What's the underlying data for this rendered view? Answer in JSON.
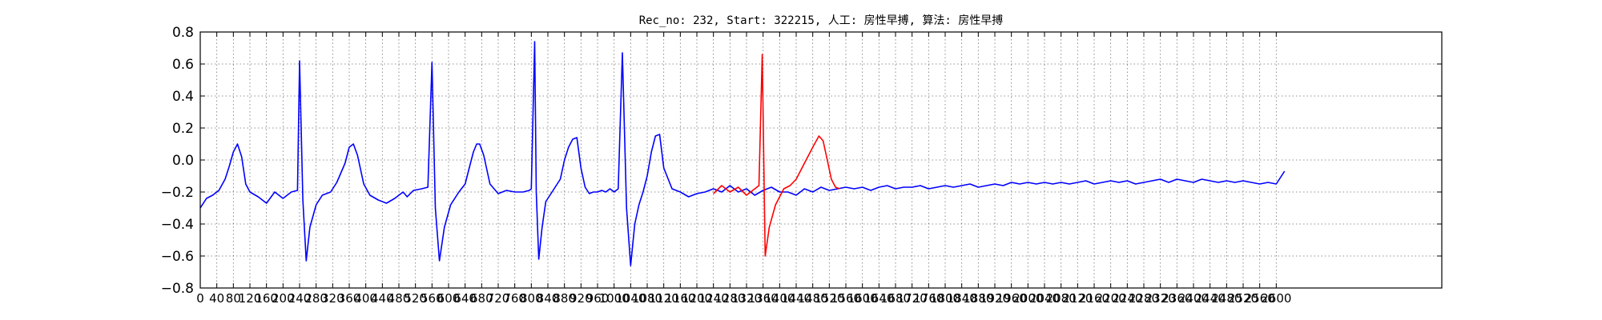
{
  "chart_data": {
    "type": "line",
    "title": "Rec_no: 232, Start: 322215, 人工: 房性早搏, 算法: 房性早搏",
    "xlabel": "",
    "ylabel": "",
    "xlim": [
      0,
      3000
    ],
    "ylim": [
      -0.8,
      0.8
    ],
    "grid": true,
    "y_ticks": [
      -0.8,
      -0.6,
      -0.4,
      -0.2,
      0.0,
      0.2,
      0.4,
      0.6,
      0.8
    ],
    "y_tick_labels": [
      "−0.8",
      "−0.6",
      "−0.4",
      "−0.2",
      "0.0",
      "0.2",
      "0.4",
      "0.6",
      "0.8"
    ],
    "x_ticks": [
      0,
      40,
      80,
      120,
      160,
      200,
      240,
      280,
      320,
      360,
      400,
      440,
      480,
      520,
      560,
      600,
      640,
      680,
      720,
      760,
      800,
      840,
      880,
      920,
      960,
      1000,
      1040,
      1080,
      1120,
      1160,
      1200,
      1240,
      1280,
      1320,
      1360,
      1400,
      1440,
      1480,
      1520,
      1560,
      1600,
      1640,
      1680,
      1720,
      1760,
      1800,
      1840,
      1880,
      1920,
      1960,
      2000,
      2040,
      2080,
      2120,
      2160,
      2200,
      2240,
      2280,
      2320,
      2360,
      2400,
      2440,
      2480,
      2520,
      2560,
      2600
    ],
    "series": [
      {
        "name": "ecg",
        "color": "#0000ff",
        "x": [
          0,
          15,
          30,
          45,
          60,
          70,
          80,
          90,
          100,
          110,
          120,
          140,
          160,
          180,
          200,
          210,
          220,
          235,
          240,
          248,
          256,
          265,
          280,
          295,
          315,
          330,
          350,
          360,
          370,
          380,
          395,
          410,
          430,
          450,
          470,
          490,
          500,
          515,
          535,
          550,
          560,
          568,
          578,
          590,
          605,
          625,
          640,
          650,
          660,
          668,
          675,
          685,
          700,
          720,
          740,
          760,
          780,
          795,
          800,
          808,
          812,
          818,
          826,
          835,
          850,
          870,
          880,
          890,
          900,
          910,
          920,
          930,
          940,
          950,
          960,
          970,
          980,
          990,
          1000,
          1010,
          1020,
          1030,
          1040,
          1050,
          1060,
          1070,
          1080,
          1090,
          1100,
          1110,
          1120,
          1140,
          1160,
          1180,
          1200,
          1220,
          1240,
          1260,
          1280,
          1300,
          1320,
          1340,
          1360,
          1380,
          1400,
          1420,
          1440,
          1460,
          1480,
          1500,
          1520,
          1540,
          1560,
          1580,
          1600,
          1620,
          1640,
          1660,
          1680,
          1700,
          1720,
          1740,
          1760,
          1780,
          1800,
          1820,
          1840,
          1860,
          1880,
          1900,
          1920,
          1940,
          1960,
          1980,
          2000,
          2020,
          2040,
          2060,
          2080,
          2100,
          2120,
          2140,
          2160,
          2180,
          2200,
          2220,
          2240,
          2260,
          2280,
          2300,
          2320,
          2340,
          2360,
          2380,
          2400,
          2420,
          2440,
          2460,
          2480,
          2500,
          2520,
          2540,
          2560,
          2580,
          2600,
          2620
        ],
        "y": [
          -0.3,
          -0.24,
          -0.22,
          -0.19,
          -0.12,
          -0.04,
          0.05,
          0.1,
          0.02,
          -0.15,
          -0.2,
          -0.23,
          -0.27,
          -0.2,
          -0.24,
          -0.22,
          -0.2,
          -0.19,
          0.62,
          -0.25,
          -0.63,
          -0.42,
          -0.28,
          -0.22,
          -0.2,
          -0.14,
          -0.02,
          0.08,
          0.1,
          0.03,
          -0.15,
          -0.22,
          -0.25,
          -0.27,
          -0.24,
          -0.2,
          -0.23,
          -0.19,
          -0.18,
          -0.17,
          0.61,
          -0.3,
          -0.63,
          -0.42,
          -0.28,
          -0.2,
          -0.15,
          -0.05,
          0.05,
          0.1,
          0.1,
          0.03,
          -0.15,
          -0.21,
          -0.19,
          -0.2,
          -0.2,
          -0.19,
          -0.18,
          0.74,
          -0.2,
          -0.62,
          -0.42,
          -0.26,
          -0.2,
          -0.12,
          0.0,
          0.08,
          0.13,
          0.14,
          -0.05,
          -0.17,
          -0.21,
          -0.2,
          -0.2,
          -0.19,
          -0.2,
          -0.18,
          -0.2,
          -0.18,
          0.67,
          -0.3,
          -0.66,
          -0.4,
          -0.28,
          -0.2,
          -0.1,
          0.05,
          0.15,
          0.16,
          -0.05,
          -0.18,
          -0.2,
          -0.23,
          -0.21,
          -0.2,
          -0.18,
          -0.2,
          -0.16,
          -0.2,
          -0.18,
          -0.22,
          -0.19,
          -0.17,
          -0.2,
          -0.2,
          -0.22,
          -0.18,
          -0.2,
          -0.17,
          -0.19,
          -0.18,
          -0.17,
          -0.18,
          -0.17,
          -0.19,
          -0.17,
          -0.16,
          -0.18,
          -0.17,
          -0.17,
          -0.16,
          -0.18,
          -0.17,
          -0.16,
          -0.17,
          -0.16,
          -0.15,
          -0.17,
          -0.16,
          -0.15,
          -0.16,
          -0.14,
          -0.15,
          -0.14,
          -0.15,
          -0.14,
          -0.15,
          -0.14,
          -0.15,
          -0.14,
          -0.13,
          -0.15,
          -0.14,
          -0.13,
          -0.14,
          -0.13,
          -0.15,
          -0.14,
          -0.13,
          -0.12,
          -0.14,
          -0.12,
          -0.13,
          -0.14,
          -0.12,
          -0.13,
          -0.14,
          -0.13,
          -0.14,
          -0.13,
          -0.14,
          -0.15,
          -0.14,
          -0.15,
          -0.07
        ]
      },
      {
        "name": "ecg-highlighted-beat",
        "color": "#ff0000",
        "x": [
          1240,
          1260,
          1280,
          1300,
          1320,
          1340,
          1350,
          1358,
          1365,
          1375,
          1390,
          1410,
          1425,
          1440,
          1460,
          1480,
          1495,
          1505,
          1515,
          1525,
          1535,
          1545
        ],
        "y": [
          -0.21,
          -0.16,
          -0.2,
          -0.17,
          -0.22,
          -0.18,
          -0.16,
          0.66,
          -0.6,
          -0.42,
          -0.28,
          -0.18,
          -0.16,
          -0.12,
          -0.02,
          0.08,
          0.15,
          0.12,
          0.0,
          -0.12,
          -0.17,
          -0.18
        ]
      }
    ]
  }
}
